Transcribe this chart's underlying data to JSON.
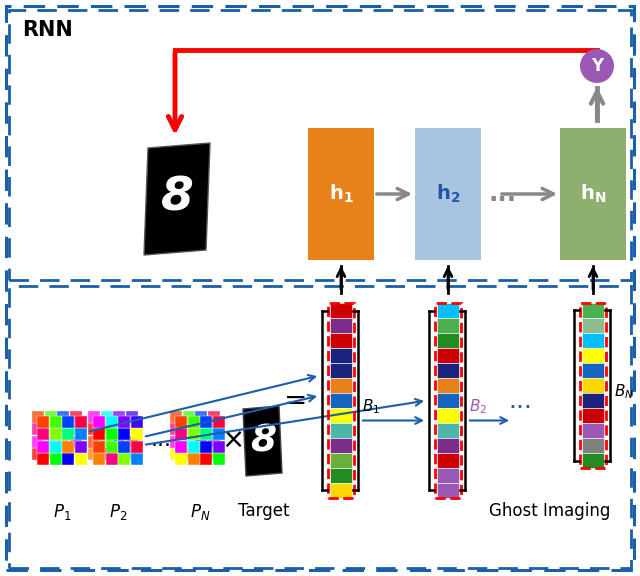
{
  "border_color": "#1a5fa8",
  "h1_color": "#E8811A",
  "h2_color": "#A8C4E0",
  "hN_color": "#8FAF6E",
  "y_circle_color": "#9B59B6",
  "arrow_red": "#FF0000",
  "arrow_gray": "#888888",
  "arrow_blue": "#1a5fa8",
  "B1_colors": [
    "#CC0000",
    "#7B2D8B",
    "#CC0000",
    "#1A237E",
    "#1A237E",
    "#E8811A",
    "#1565C0",
    "#FFFF00",
    "#4DB6AC",
    "#7B2D8B",
    "#6AAF3D",
    "#228B22",
    "#FFD700"
  ],
  "B2_colors": [
    "#00BFFF",
    "#4CAF50",
    "#228B22",
    "#CC0000",
    "#1A237E",
    "#E8811A",
    "#1565C0",
    "#FFFF00",
    "#4DB6AC",
    "#7B2D8B",
    "#CC0000",
    "#9B59B6",
    "#9B59B6"
  ],
  "BN_colors": [
    "#4CAF50",
    "#8FBC8F",
    "#00BFFF",
    "#FFFF00",
    "#1565C0",
    "#FFD700",
    "#1A237E",
    "#CC0000",
    "#9B59B6",
    "#808080",
    "#228B22"
  ],
  "P1_colors": [
    "#FF0000",
    "#00FF00",
    "#0000FF",
    "#FFFF00",
    "#FF00FF",
    "#00FFFF",
    "#FF8000",
    "#8000FF",
    "#FF0080",
    "#80FF00",
    "#00FF80",
    "#0080FF",
    "#FF4000",
    "#40FF00",
    "#0040FF",
    "#FF0040"
  ],
  "P2_colors": [
    "#FF8000",
    "#FF0080",
    "#80FF00",
    "#0080FF",
    "#FF4000",
    "#40FF00",
    "#0040FF",
    "#FF0040",
    "#FF0000",
    "#00FF00",
    "#0000FF",
    "#FFFF00",
    "#FF00FF",
    "#00FFFF",
    "#8000FF",
    "#4000FF"
  ],
  "PN_colors": [
    "#FFFF00",
    "#FF8000",
    "#FF0000",
    "#00FF00",
    "#FF00FF",
    "#00FFFF",
    "#0000FF",
    "#8000FF",
    "#FF0080",
    "#80FF00",
    "#00FF80",
    "#0080FF",
    "#FF4000",
    "#40FF00",
    "#0040FF",
    "#FF0040"
  ],
  "rnn_label": "RNN",
  "target_label": "Target",
  "ghost_label": "Ghost Imaging",
  "y_label": "Y",
  "h1_label": "$\\mathbf{h_1}$",
  "h2_label": "$\\mathbf{h_2}$",
  "hN_label": "$\\mathbf{h_N}$",
  "dots": "...",
  "B1_label": "$B_1$",
  "B2_label": "$B_2$",
  "BN_label": "$B_N$",
  "P1_label": "$P_1$",
  "P2_label": "$P_2$",
  "PN_label": "$P_N$"
}
